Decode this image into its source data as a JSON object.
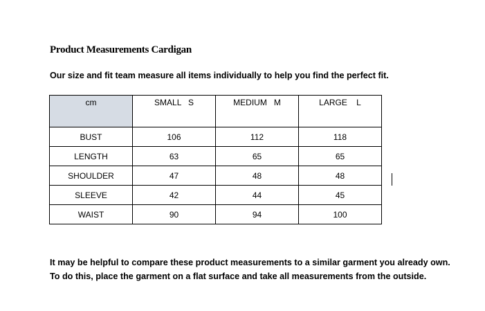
{
  "title": "Product Measurements Cardigan",
  "subtitle": "Our size and fit team measure all items individually to help you find the perfect fit.",
  "table": {
    "header": [
      "cm",
      "SMALL   S",
      "MEDIUM   M",
      "LARGE    L"
    ],
    "rows": [
      [
        "BUST",
        106,
        112,
        118
      ],
      [
        "LENGTH",
        63,
        65,
        65
      ],
      [
        "SHOULDER",
        47,
        48,
        48
      ],
      [
        "SLEEVE",
        42,
        44,
        45
      ],
      [
        "WAIST",
        90,
        94,
        100
      ]
    ]
  },
  "footer": [
    "It may be helpful to compare these product measurements to a similar garment you already own.",
    "To do this, place the garment on a flat surface and take all measurements from the outside."
  ]
}
